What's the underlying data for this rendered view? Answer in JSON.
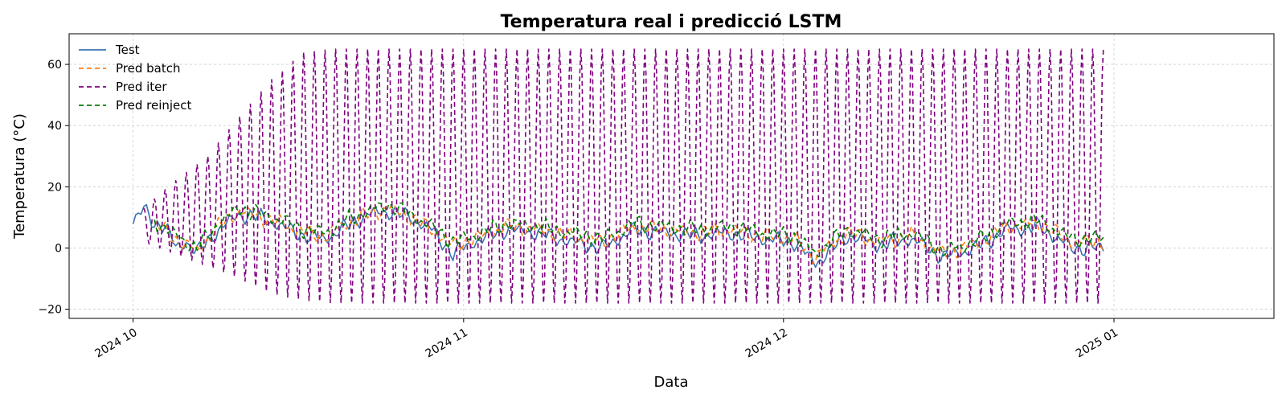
{
  "chart_data": {
    "type": "line",
    "title": "Temperatura real i predicció LSTM",
    "xlabel": "Data",
    "ylabel": "Temperatura (°C)",
    "x_range": [
      "2024-09-25",
      "2025-01-16"
    ],
    "ylim": [
      -23,
      70
    ],
    "x_ticks": [
      {
        "date": "2024-10-01",
        "label": "2024 10"
      },
      {
        "date": "2024-11-01",
        "label": "2024 11"
      },
      {
        "date": "2024-12-01",
        "label": "2024 12"
      },
      {
        "date": "2025-01-01",
        "label": "2025 01"
      }
    ],
    "y_ticks": [
      -20,
      0,
      20,
      40,
      60
    ],
    "grid": true,
    "legend_position": "upper-left",
    "series": [
      {
        "name": "Test",
        "color": "#3b75af",
        "style": "solid",
        "points": [
          [
            "2024-10-01",
            9
          ],
          [
            "2024-10-02",
            12.5
          ],
          [
            "2024-10-03",
            8
          ],
          [
            "2024-10-04",
            7.5
          ],
          [
            "2024-10-05",
            0
          ],
          [
            "2024-10-06",
            2
          ],
          [
            "2024-10-07",
            -1.5
          ],
          [
            "2024-10-09",
            6
          ],
          [
            "2024-10-11",
            11
          ],
          [
            "2024-10-13",
            10
          ],
          [
            "2024-10-15",
            7
          ],
          [
            "2024-10-17",
            4
          ],
          [
            "2024-10-19",
            3
          ],
          [
            "2024-10-21",
            7
          ],
          [
            "2024-10-23",
            11
          ],
          [
            "2024-10-25",
            12
          ],
          [
            "2024-10-27",
            10
          ],
          [
            "2024-10-29",
            6
          ],
          [
            "2024-10-31",
            -2
          ],
          [
            "2024-11-02",
            2
          ],
          [
            "2024-11-05",
            6
          ],
          [
            "2024-11-08",
            5
          ],
          [
            "2024-11-11",
            2
          ],
          [
            "2024-11-14",
            0
          ],
          [
            "2024-11-17",
            6
          ],
          [
            "2024-11-20",
            5
          ],
          [
            "2024-11-23",
            4
          ],
          [
            "2024-11-26",
            5
          ],
          [
            "2024-11-29",
            3
          ],
          [
            "2024-12-02",
            2
          ],
          [
            "2024-12-04",
            -5
          ],
          [
            "2024-12-07",
            4
          ],
          [
            "2024-12-10",
            1
          ],
          [
            "2024-12-13",
            3
          ],
          [
            "2024-12-16",
            -3
          ],
          [
            "2024-12-19",
            0
          ],
          [
            "2024-12-22",
            6
          ],
          [
            "2024-12-25",
            7
          ],
          [
            "2024-12-28",
            0
          ],
          [
            "2024-12-31",
            0
          ]
        ]
      },
      {
        "name": "Pred batch",
        "color": "#ff7f0e",
        "style": "dashed",
        "points": [
          [
            "2024-10-03",
            8
          ],
          [
            "2024-10-05",
            3
          ],
          [
            "2024-10-07",
            -1
          ],
          [
            "2024-10-09",
            7
          ],
          [
            "2024-10-11",
            12
          ],
          [
            "2024-10-13",
            10
          ],
          [
            "2024-10-15",
            8
          ],
          [
            "2024-10-17",
            5
          ],
          [
            "2024-10-19",
            4
          ],
          [
            "2024-10-21",
            8
          ],
          [
            "2024-10-23",
            11
          ],
          [
            "2024-10-25",
            13
          ],
          [
            "2024-10-27",
            10
          ],
          [
            "2024-10-29",
            6
          ],
          [
            "2024-10-31",
            1
          ],
          [
            "2024-11-02",
            3
          ],
          [
            "2024-11-05",
            7
          ],
          [
            "2024-11-08",
            6
          ],
          [
            "2024-11-11",
            4
          ],
          [
            "2024-11-14",
            2
          ],
          [
            "2024-11-17",
            7
          ],
          [
            "2024-11-20",
            6
          ],
          [
            "2024-11-23",
            5
          ],
          [
            "2024-11-26",
            6
          ],
          [
            "2024-11-29",
            4
          ],
          [
            "2024-12-02",
            3
          ],
          [
            "2024-12-04",
            -3
          ],
          [
            "2024-12-07",
            5
          ],
          [
            "2024-12-10",
            2
          ],
          [
            "2024-12-13",
            4
          ],
          [
            "2024-12-16",
            -2
          ],
          [
            "2024-12-19",
            1
          ],
          [
            "2024-12-22",
            7
          ],
          [
            "2024-12-25",
            8
          ],
          [
            "2024-12-28",
            2
          ],
          [
            "2024-12-31",
            2
          ]
        ]
      },
      {
        "name": "Pred iter",
        "color": "#800080",
        "style": "dashed",
        "cycle_days": 1,
        "points": [
          [
            "2024-10-02",
            13,
            2
          ],
          [
            "2024-10-05",
            22,
            -2
          ],
          [
            "2024-10-08",
            30,
            -6
          ],
          [
            "2024-10-11",
            43,
            -10
          ],
          [
            "2024-10-14",
            55,
            -15
          ],
          [
            "2024-10-17",
            64,
            -17
          ],
          [
            "2024-10-20",
            65,
            -18
          ],
          [
            "2024-12-31",
            65,
            -18
          ]
        ]
      },
      {
        "name": "Pred reinject",
        "color": "#008000",
        "style": "dashed",
        "points": [
          [
            "2024-10-03",
            9
          ],
          [
            "2024-10-05",
            4
          ],
          [
            "2024-10-07",
            0
          ],
          [
            "2024-10-09",
            8
          ],
          [
            "2024-10-11",
            13
          ],
          [
            "2024-10-13",
            11
          ],
          [
            "2024-10-15",
            9
          ],
          [
            "2024-10-17",
            6
          ],
          [
            "2024-10-19",
            5
          ],
          [
            "2024-10-21",
            9
          ],
          [
            "2024-10-23",
            12
          ],
          [
            "2024-10-25",
            14
          ],
          [
            "2024-10-27",
            11
          ],
          [
            "2024-10-29",
            7
          ],
          [
            "2024-10-31",
            2
          ],
          [
            "2024-11-02",
            4
          ],
          [
            "2024-11-05",
            8
          ],
          [
            "2024-11-08",
            7
          ],
          [
            "2024-11-11",
            5
          ],
          [
            "2024-11-14",
            3
          ],
          [
            "2024-11-17",
            8
          ],
          [
            "2024-11-20",
            7
          ],
          [
            "2024-11-23",
            6
          ],
          [
            "2024-11-26",
            7
          ],
          [
            "2024-11-29",
            5
          ],
          [
            "2024-12-02",
            4
          ],
          [
            "2024-12-04",
            -2
          ],
          [
            "2024-12-07",
            6
          ],
          [
            "2024-12-10",
            3
          ],
          [
            "2024-12-13",
            5
          ],
          [
            "2024-12-16",
            -1
          ],
          [
            "2024-12-19",
            2
          ],
          [
            "2024-12-22",
            8
          ],
          [
            "2024-12-25",
            9
          ],
          [
            "2024-12-28",
            3
          ],
          [
            "2024-12-31",
            3
          ]
        ]
      }
    ]
  }
}
